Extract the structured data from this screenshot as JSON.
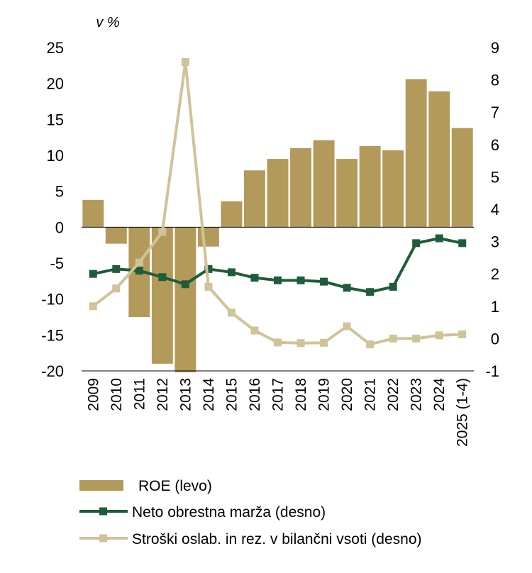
{
  "chart_data": {
    "type": "bar+line",
    "unit_label": "v %",
    "categories": [
      "2009",
      "2010",
      "2011",
      "2012",
      "2013",
      "2014",
      "2015",
      "2016",
      "2017",
      "2018",
      "2019",
      "2020",
      "2021",
      "2022",
      "2023",
      "2024",
      "2025 (1-4)"
    ],
    "y_left": {
      "min": -20,
      "max": 25,
      "step": 5,
      "ticks": [
        "-20",
        "-15",
        "-10",
        "-5",
        "0",
        "5",
        "10",
        "15",
        "20",
        "25"
      ]
    },
    "y_right": {
      "min": -1,
      "max": 9,
      "step": 1,
      "ticks": [
        "-1",
        "0",
        "1",
        "2",
        "3",
        "4",
        "5",
        "6",
        "7",
        "8",
        "9"
      ]
    },
    "series": [
      {
        "name": "ROE (levo)",
        "kind": "bar",
        "axis": "left",
        "color": "#b39a5b",
        "values": [
          3.8,
          -2.3,
          -12.5,
          -19.0,
          -20.2,
          -2.7,
          3.6,
          7.9,
          9.5,
          11.0,
          12.1,
          9.5,
          11.3,
          10.7,
          20.6,
          18.9,
          13.8
        ]
      },
      {
        "name": "Neto obrestna marža (desno)",
        "kind": "line",
        "axis": "right",
        "color": "#1f5c3a",
        "values": [
          2.0,
          2.15,
          2.1,
          1.9,
          1.68,
          2.15,
          2.05,
          1.88,
          1.8,
          1.8,
          1.76,
          1.57,
          1.44,
          1.6,
          2.95,
          3.1,
          2.95
        ]
      },
      {
        "name": "Stroški oslab. in rez. v bilančni vsoti (desno)",
        "kind": "line",
        "axis": "right",
        "color": "#cfc398",
        "values": [
          1.0,
          1.55,
          2.35,
          3.3,
          8.55,
          1.6,
          0.8,
          0.25,
          -0.12,
          -0.14,
          -0.13,
          0.38,
          -0.18,
          0.0,
          0.0,
          0.1,
          0.13
        ]
      }
    ]
  }
}
